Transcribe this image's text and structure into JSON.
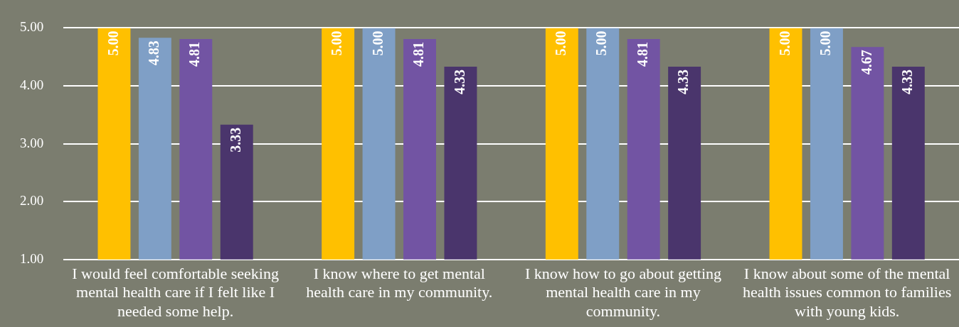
{
  "chart_data": {
    "type": "bar",
    "categories": [
      "I would feel comfortable seeking mental health care if I felt like I needed some help.",
      "I know where to get mental health care in my community.",
      "I know how to go about getting mental health care in my community.",
      "I know about some of the mental health issues common to families with young kids."
    ],
    "series": [
      {
        "color": "#ffc000",
        "values": [
          5.0,
          5.0,
          5.0,
          5.0
        ],
        "value_labels": [
          "5.00",
          "5.00",
          "5.00",
          "5.00"
        ]
      },
      {
        "color": "#7f9fc6",
        "values": [
          4.83,
          5.0,
          5.0,
          5.0
        ],
        "value_labels": [
          "4.83",
          "5.00",
          "5.00",
          "5.00"
        ]
      },
      {
        "color": "#7254a3",
        "values": [
          4.81,
          4.81,
          4.81,
          4.67
        ],
        "value_labels": [
          "4.81",
          "4.81",
          "4.81",
          "4.67"
        ]
      },
      {
        "color": "#4a356c",
        "values": [
          3.33,
          4.33,
          4.33,
          4.33
        ],
        "value_labels": [
          "3.33",
          "4.33",
          "4.33",
          "4.33"
        ]
      }
    ],
    "ylim": [
      1,
      5
    ],
    "yticks": [
      {
        "value": 1,
        "label": "1.00"
      },
      {
        "value": 2,
        "label": "2.00"
      },
      {
        "value": 3,
        "label": "3.00"
      },
      {
        "value": 4,
        "label": "4.00"
      },
      {
        "value": 5,
        "label": "5.00"
      }
    ],
    "grid": "y",
    "legend": false
  }
}
